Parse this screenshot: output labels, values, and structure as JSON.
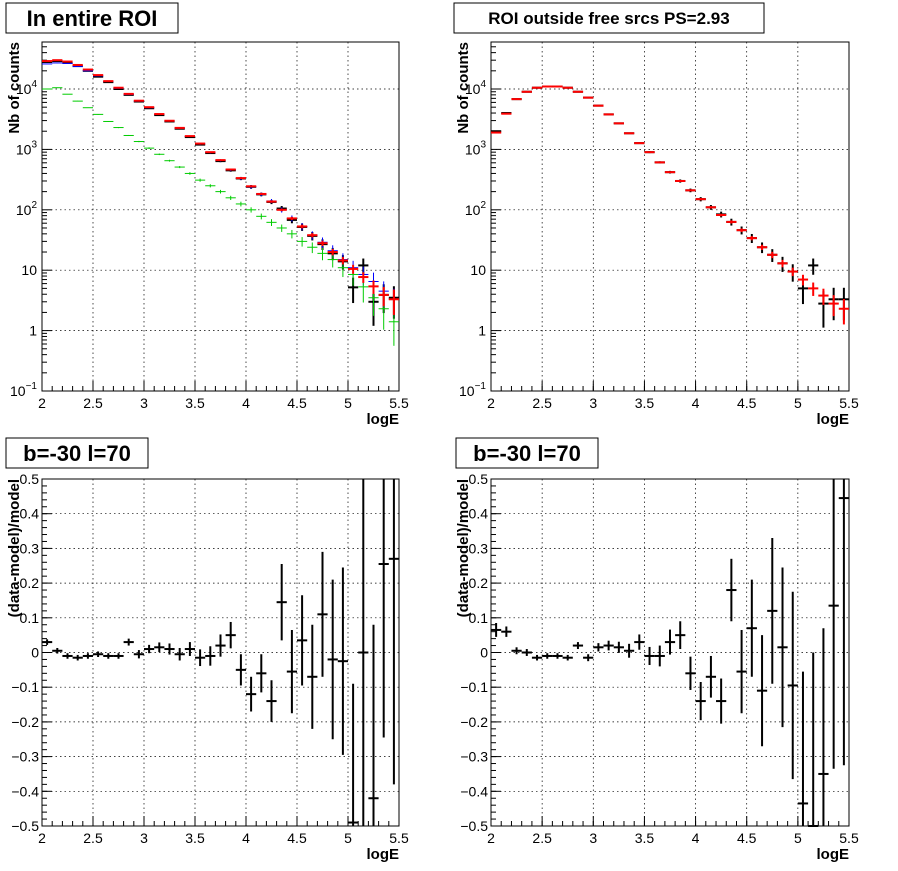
{
  "colors": {
    "data": "#000000",
    "model": "#ff0000",
    "component_blue": "#0000ff",
    "component_green": "#00cc00",
    "grid": "#000000"
  },
  "chart_data": [
    {
      "type": "scatter",
      "title": "In entire ROI",
      "xlabel": "logE",
      "ylabel": "Nb of counts",
      "yscale": "log",
      "xlim": [
        2,
        5.5
      ],
      "ylim": [
        0.1,
        60000
      ],
      "grid": true,
      "x_ticks": [
        "2",
        "2.5",
        "3",
        "3.5",
        "4",
        "4.5",
        "5",
        "5.5"
      ],
      "y_ticks": [
        {
          "base": "10",
          "exp": "−1",
          "value": 0.1
        },
        {
          "base": "1",
          "exp": "",
          "value": 1
        },
        {
          "base": "10",
          "exp": "",
          "value": 10
        },
        {
          "base": "10",
          "exp": "2",
          "value": 100
        },
        {
          "base": "10",
          "exp": "3",
          "value": 1000
        },
        {
          "base": "10",
          "exp": "4",
          "value": 10000
        }
      ],
      "x": [
        2.05,
        2.15,
        2.25,
        2.35,
        2.45,
        2.55,
        2.65,
        2.75,
        2.85,
        2.95,
        3.05,
        3.15,
        3.25,
        3.35,
        3.45,
        3.55,
        3.65,
        3.75,
        3.85,
        3.95,
        4.05,
        4.15,
        4.25,
        4.35,
        4.45,
        4.55,
        4.65,
        4.75,
        4.85,
        4.95,
        5.05,
        5.15,
        5.25,
        5.35,
        5.45
      ],
      "series": [
        {
          "style": "data",
          "values": [
            28000,
            29000,
            27000,
            24000,
            20000,
            16000,
            13000,
            10000,
            8000,
            6200,
            4800,
            3700,
            2900,
            2200,
            1600,
            1200,
            870,
            640,
            450,
            330,
            240,
            180,
            135,
            105,
            68,
            52,
            37,
            27,
            19,
            14,
            5.2,
            12,
            3.0,
            3.9,
            3.5
          ],
          "errors_rel": [
            0.01,
            0.01,
            0.01,
            0.01,
            0.01,
            0.01,
            0.01,
            0.01,
            0.01,
            0.015,
            0.015,
            0.02,
            0.02,
            0.02,
            0.025,
            0.03,
            0.035,
            0.04,
            0.05,
            0.06,
            0.07,
            0.07,
            0.08,
            0.1,
            0.12,
            0.14,
            0.16,
            0.2,
            0.23,
            0.27,
            0.45,
            0.3,
            0.6,
            0.5,
            0.55
          ]
        },
        {
          "style": "component_blue",
          "values": [
            26000,
            27000,
            26500,
            23500,
            20000,
            16500,
            13300,
            10300,
            8100,
            6300,
            4900,
            3800,
            2950,
            2250,
            1650,
            1230,
            890,
            660,
            460,
            330,
            240,
            180,
            140,
            100,
            72,
            53,
            38,
            29,
            21,
            15,
            11,
            8.5,
            6.5,
            4.5,
            3.3
          ],
          "errors_rel": [
            0.01,
            0.01,
            0.01,
            0.01,
            0.01,
            0.01,
            0.01,
            0.01,
            0.01,
            0.015,
            0.015,
            0.02,
            0.02,
            0.02,
            0.025,
            0.03,
            0.035,
            0.04,
            0.05,
            0.06,
            0.07,
            0.07,
            0.08,
            0.1,
            0.12,
            0.14,
            0.16,
            0.2,
            0.23,
            0.27,
            0.3,
            0.35,
            0.4,
            0.45,
            0.5
          ]
        },
        {
          "style": "component_green",
          "values": [
            10000,
            10500,
            8200,
            6300,
            4900,
            3800,
            2900,
            2300,
            1700,
            1350,
            1050,
            830,
            650,
            510,
            400,
            310,
            250,
            200,
            158,
            125,
            100,
            78,
            62,
            50,
            40,
            30,
            24,
            19,
            15,
            11,
            8.5,
            5.3,
            3.5,
            2.3,
            1.4
          ],
          "errors_rel": [
            0.01,
            0.01,
            0.01,
            0.01,
            0.01,
            0.015,
            0.015,
            0.02,
            0.02,
            0.025,
            0.03,
            0.03,
            0.035,
            0.04,
            0.05,
            0.06,
            0.06,
            0.07,
            0.08,
            0.09,
            0.1,
            0.11,
            0.13,
            0.14,
            0.16,
            0.18,
            0.2,
            0.23,
            0.26,
            0.3,
            0.35,
            0.45,
            0.5,
            0.55,
            0.6
          ]
        },
        {
          "style": "model",
          "values": [
            29000,
            30000,
            28500,
            25000,
            21000,
            17000,
            13500,
            10500,
            8300,
            6400,
            5000,
            3850,
            2980,
            2270,
            1660,
            1250,
            900,
            665,
            465,
            335,
            245,
            183,
            137,
            100,
            72,
            53,
            38,
            28,
            20,
            14.5,
            10.5,
            7.7,
            5.4,
            3.9,
            3.3
          ],
          "errors_rel": [
            0.005,
            0.005,
            0.005,
            0.005,
            0.005,
            0.005,
            0.005,
            0.005,
            0.005,
            0.01,
            0.01,
            0.01,
            0.01,
            0.01,
            0.015,
            0.015,
            0.02,
            0.02,
            0.025,
            0.03,
            0.035,
            0.04,
            0.045,
            0.05,
            0.06,
            0.07,
            0.08,
            0.1,
            0.12,
            0.14,
            0.17,
            0.2,
            0.25,
            0.35,
            0.45
          ]
        }
      ]
    },
    {
      "type": "scatter",
      "title": "ROI outside free srcs PS=2.93",
      "xlabel": "logE",
      "ylabel": "Nb of counts",
      "yscale": "log",
      "xlim": [
        2,
        5.5
      ],
      "ylim": [
        0.1,
        60000
      ],
      "grid": true,
      "x_ticks": [
        "2",
        "2.5",
        "3",
        "3.5",
        "4",
        "4.5",
        "5",
        "5.5"
      ],
      "y_ticks": [
        {
          "base": "10",
          "exp": "−1",
          "value": 0.1
        },
        {
          "base": "1",
          "exp": "",
          "value": 1
        },
        {
          "base": "10",
          "exp": "",
          "value": 10
        },
        {
          "base": "10",
          "exp": "2",
          "value": 100
        },
        {
          "base": "10",
          "exp": "3",
          "value": 1000
        },
        {
          "base": "10",
          "exp": "4",
          "value": 10000
        }
      ],
      "x": [
        2.05,
        2.15,
        2.25,
        2.35,
        2.45,
        2.55,
        2.65,
        2.75,
        2.85,
        2.95,
        3.05,
        3.15,
        3.25,
        3.35,
        3.45,
        3.55,
        3.65,
        3.75,
        3.85,
        3.95,
        4.05,
        4.15,
        4.25,
        4.35,
        4.45,
        4.55,
        4.65,
        4.75,
        4.85,
        4.95,
        5.05,
        5.15,
        5.25,
        5.35,
        5.45
      ],
      "series": [
        {
          "style": "data",
          "values": [
            2000,
            4000,
            6800,
            9000,
            10500,
            11000,
            11000,
            10500,
            9000,
            7200,
            5300,
            3800,
            2700,
            1850,
            1270,
            900,
            610,
            420,
            300,
            210,
            150,
            110,
            84,
            63,
            46,
            34,
            24,
            18,
            13,
            9.5,
            5.0,
            12,
            2.8,
            3.3,
            3.3
          ],
          "errors_rel": [
            0.02,
            0.015,
            0.01,
            0.01,
            0.01,
            0.01,
            0.01,
            0.01,
            0.01,
            0.01,
            0.015,
            0.015,
            0.02,
            0.025,
            0.03,
            0.035,
            0.04,
            0.05,
            0.06,
            0.07,
            0.08,
            0.09,
            0.11,
            0.13,
            0.15,
            0.17,
            0.2,
            0.24,
            0.28,
            0.32,
            0.45,
            0.3,
            0.6,
            0.55,
            0.55
          ]
        },
        {
          "style": "model",
          "values": [
            1900,
            3900,
            6800,
            9000,
            10500,
            11000,
            11000,
            10500,
            9000,
            7200,
            5300,
            3800,
            2700,
            1850,
            1270,
            900,
            610,
            420,
            300,
            210,
            150,
            110,
            82,
            63,
            46,
            34,
            24,
            18,
            13,
            9.5,
            7.0,
            5.0,
            3.8,
            2.8,
            2.3
          ],
          "errors_rel": [
            0.01,
            0.01,
            0.005,
            0.005,
            0.005,
            0.005,
            0.005,
            0.005,
            0.005,
            0.005,
            0.01,
            0.01,
            0.01,
            0.015,
            0.015,
            0.02,
            0.02,
            0.025,
            0.03,
            0.035,
            0.04,
            0.045,
            0.05,
            0.06,
            0.07,
            0.08,
            0.1,
            0.12,
            0.14,
            0.16,
            0.2,
            0.25,
            0.3,
            0.38,
            0.45
          ]
        }
      ]
    },
    {
      "type": "scatter",
      "title": "b=-30 l=70",
      "xlabel": "logE",
      "ylabel": "(data-model)/model",
      "yscale": "linear",
      "xlim": [
        2,
        5.5
      ],
      "ylim": [
        -0.5,
        0.5
      ],
      "grid": true,
      "x_ticks": [
        "2",
        "2.5",
        "3",
        "3.5",
        "4",
        "4.5",
        "5",
        "5.5"
      ],
      "y_ticks": [
        "−0.5",
        "−0.4",
        "−0.3",
        "−0.2",
        "−0.1",
        "0",
        "0.1",
        "0.2",
        "0.3",
        "0.4",
        "0.5"
      ],
      "x": [
        2.05,
        2.15,
        2.25,
        2.35,
        2.45,
        2.55,
        2.65,
        2.75,
        2.85,
        2.95,
        3.05,
        3.15,
        3.25,
        3.35,
        3.45,
        3.55,
        3.65,
        3.75,
        3.85,
        3.95,
        4.05,
        4.15,
        4.25,
        4.35,
        4.45,
        4.55,
        4.65,
        4.75,
        4.85,
        4.95,
        5.05,
        5.15,
        5.25,
        5.35,
        5.45
      ],
      "series": [
        {
          "style": "data",
          "values": [
            0.03,
            0.005,
            -0.01,
            -0.015,
            -0.01,
            -0.005,
            -0.01,
            -0.01,
            0.03,
            -0.005,
            0.01,
            0.015,
            0.01,
            -0.005,
            0.01,
            -0.015,
            -0.01,
            0.02,
            0.05,
            -0.05,
            -0.12,
            -0.06,
            -0.14,
            0.145,
            -0.055,
            0.035,
            -0.07,
            0.11,
            -0.02,
            -0.025,
            -0.49,
            0.0,
            -0.42,
            0.255,
            0.27
          ],
          "errors": [
            0.008,
            0.008,
            0.008,
            0.008,
            0.008,
            0.008,
            0.008,
            0.008,
            0.01,
            0.012,
            0.012,
            0.014,
            0.016,
            0.018,
            0.02,
            0.024,
            0.028,
            0.032,
            0.038,
            0.045,
            0.05,
            0.055,
            0.06,
            0.11,
            0.12,
            0.13,
            0.15,
            0.18,
            0.23,
            0.27,
            0.4,
            0.5,
            0.5,
            0.5,
            0.65
          ]
        }
      ]
    },
    {
      "type": "scatter",
      "title": "b=-30 l=70",
      "xlabel": "logE",
      "ylabel": "(data-model)/model",
      "yscale": "linear",
      "xlim": [
        2,
        5.5
      ],
      "ylim": [
        -0.5,
        0.5
      ],
      "grid": true,
      "x_ticks": [
        "2",
        "2.5",
        "3",
        "3.5",
        "4",
        "4.5",
        "5",
        "5.5"
      ],
      "y_ticks": [
        "−0.5",
        "−0.4",
        "−0.3",
        "−0.2",
        "−0.1",
        "0",
        "0.1",
        "0.2",
        "0.3",
        "0.4",
        "0.5"
      ],
      "x": [
        2.05,
        2.15,
        2.25,
        2.35,
        2.45,
        2.55,
        2.65,
        2.75,
        2.85,
        2.95,
        3.05,
        3.15,
        3.25,
        3.35,
        3.45,
        3.55,
        3.65,
        3.75,
        3.85,
        3.95,
        4.05,
        4.15,
        4.25,
        4.35,
        4.45,
        4.55,
        4.65,
        4.75,
        4.85,
        4.95,
        5.05,
        5.15,
        5.25,
        5.35,
        5.45
      ],
      "series": [
        {
          "style": "data",
          "values": [
            0.065,
            0.06,
            0.005,
            0.0,
            -0.015,
            -0.01,
            -0.01,
            -0.015,
            0.02,
            -0.015,
            0.015,
            0.02,
            0.015,
            0.005,
            0.03,
            -0.01,
            -0.01,
            0.03,
            0.05,
            -0.06,
            -0.14,
            -0.07,
            -0.14,
            0.18,
            -0.055,
            0.07,
            -0.11,
            0.12,
            0.015,
            -0.095,
            -0.435,
            -0.5,
            -0.35,
            0.135,
            0.445
          ],
          "errors": [
            0.02,
            0.015,
            0.01,
            0.01,
            0.008,
            0.008,
            0.008,
            0.008,
            0.01,
            0.01,
            0.012,
            0.014,
            0.016,
            0.02,
            0.022,
            0.026,
            0.03,
            0.036,
            0.04,
            0.048,
            0.055,
            0.06,
            0.065,
            0.09,
            0.12,
            0.14,
            0.16,
            0.21,
            0.23,
            0.27,
            0.38,
            0.5,
            0.42,
            0.47,
            0.77
          ]
        }
      ]
    }
  ]
}
